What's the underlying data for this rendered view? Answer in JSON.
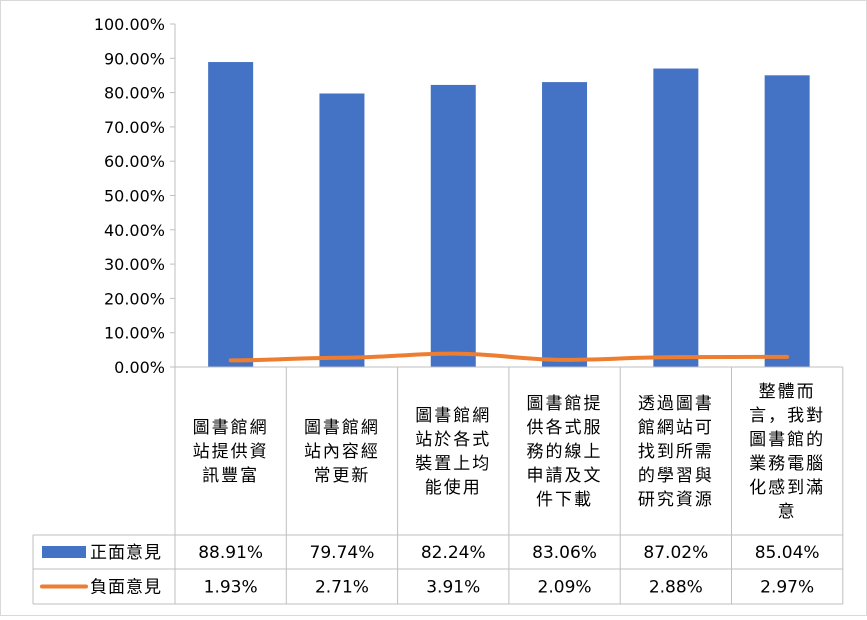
{
  "chart_data": {
    "type": "bar",
    "categories": [
      [
        "圖書館網",
        "站提供資",
        "訊豐富"
      ],
      [
        "圖書館網",
        "站內容經",
        "常更新"
      ],
      [
        "圖書館網",
        "站於各式",
        "裝置上均",
        "能使用"
      ],
      [
        "圖書館提",
        "供各式服",
        "務的線上",
        "申請及文",
        "件下載"
      ],
      [
        "透過圖書",
        "館網站可",
        "找到所需",
        "的學習與",
        "研究資源"
      ],
      [
        "整體而",
        "言，我對",
        "圖書館的",
        "業務電腦",
        "化感到滿",
        "意"
      ]
    ],
    "series": [
      {
        "name": "正面意見",
        "kind": "bar",
        "color": "#4472C4",
        "values": [
          88.91,
          79.74,
          82.24,
          83.06,
          87.02,
          85.04
        ],
        "labels": [
          "88.91%",
          "79.74%",
          "82.24%",
          "83.06%",
          "87.02%",
          "85.04%"
        ]
      },
      {
        "name": "負面意見",
        "kind": "line",
        "color": "#ED7D31",
        "values": [
          1.93,
          2.71,
          3.91,
          2.09,
          2.88,
          2.97
        ],
        "labels": [
          "1.93%",
          "2.71%",
          "3.91%",
          "2.09%",
          "2.88%",
          "2.97%"
        ]
      }
    ],
    "ylim": [
      0,
      100
    ],
    "yticks": [
      "0.00%",
      "10.00%",
      "20.00%",
      "30.00%",
      "40.00%",
      "50.00%",
      "60.00%",
      "70.00%",
      "80.00%",
      "90.00%",
      "100.00%"
    ],
    "title": "",
    "xlabel": "",
    "ylabel": "",
    "grid": false,
    "legend": "data-table"
  }
}
